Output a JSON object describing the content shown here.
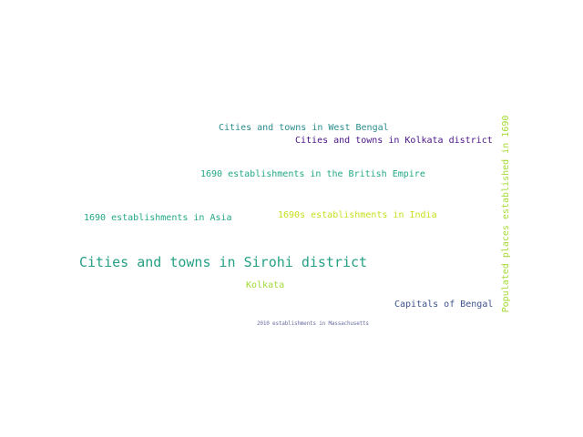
{
  "words": [
    {
      "text": "Cities and towns in Sirohi district",
      "color": "#26a085"
    },
    {
      "text": "Cities and towns in Kolkata district",
      "color": "#4a1486"
    },
    {
      "text": "1690 establishments in the British Empire",
      "color": "#22a884"
    },
    {
      "text": "Cities and towns in West Bengal",
      "color": "#2a8c8c"
    },
    {
      "text": "Capitals of Bengal",
      "color": "#3b528b"
    },
    {
      "text": "1690s establishments in India",
      "color": "#c8e020"
    },
    {
      "text": "1690 establishments in Asia",
      "color": "#22a884"
    },
    {
      "text": "Kolkata",
      "color": "#a0da39"
    },
    {
      "text": "2010 establishments in Massachusetts",
      "color": "#6b6fa3"
    },
    {
      "text": "Populated places established in 1690",
      "color": "#a5db36"
    }
  ]
}
